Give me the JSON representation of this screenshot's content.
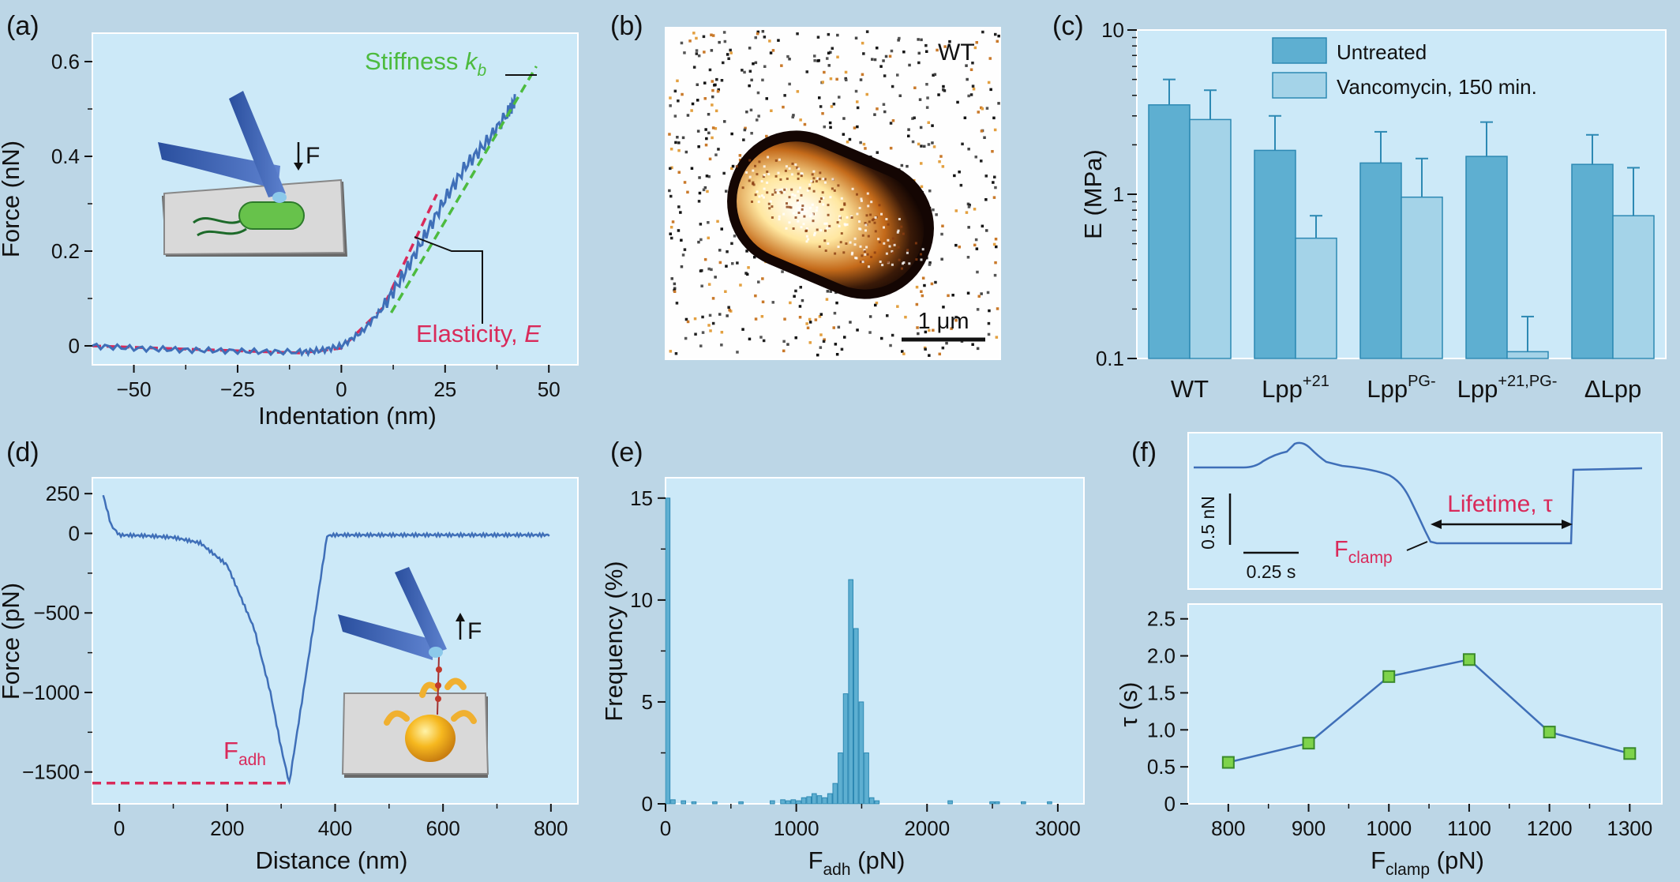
{
  "panels": {
    "a": {
      "label": "(a)"
    },
    "b": {
      "label": "(b)"
    },
    "c": {
      "label": "(c)"
    },
    "d": {
      "label": "(d)"
    },
    "e": {
      "label": "(e)"
    },
    "f": {
      "label": "(f)"
    }
  },
  "colors": {
    "figure_bg": "#bcd6e6",
    "panel_bg": "#cce9f8",
    "trace": "#3f6fb8",
    "accent_red": "#d92a5a",
    "accent_green": "#4dbb3f",
    "bar_dark": "#5eafd1",
    "bar_light": "#a4d3e8",
    "marker": "#7ed34b"
  },
  "chart_data": [
    {
      "id": "a",
      "type": "line",
      "xlabel": "Indentation (nm)",
      "ylabel": "Force (nN)",
      "xlim": [
        -60,
        57
      ],
      "ylim": [
        -0.04,
        0.66
      ],
      "xticks": [
        -50,
        -25,
        0,
        25,
        50
      ],
      "xtick_labels": [
        "−50",
        "−25",
        "0",
        "25",
        "50"
      ],
      "yticks": [
        0,
        0.2,
        0.4,
        0.6
      ],
      "ytick_labels": [
        "0",
        "0.2",
        "0.4",
        "0.6"
      ],
      "grid": false,
      "series": [
        {
          "x": [
            -60,
            -50,
            -40,
            -30,
            -20,
            -10,
            -5,
            0,
            5,
            10,
            15,
            20,
            25,
            30,
            35,
            40,
            42
          ],
          "y": [
            0,
            -0.005,
            -0.008,
            -0.01,
            -0.012,
            -0.013,
            -0.01,
            0,
            0.03,
            0.08,
            0.15,
            0.23,
            0.31,
            0.38,
            0.43,
            0.49,
            0.52
          ]
        }
      ],
      "fits": [
        {
          "x": [
            -60,
            -10,
            0,
            10,
            23
          ],
          "y": [
            0,
            -0.015,
            -0.005,
            0.08,
            0.32
          ]
        },
        {
          "x": [
            12,
            47
          ],
          "y": [
            0.07,
            0.59
          ]
        }
      ],
      "annotations": {
        "stiffness_text": "Stiffness ",
        "stiffness_symbol": "k",
        "stiffness_sub": "b",
        "elasticity_text": "Elasticity, ",
        "elasticity_symbol": "E",
        "force_arrow_label": "F"
      }
    },
    {
      "id": "b",
      "type": "image",
      "corner_label": "WT",
      "scalebar_label": "1 μm"
    },
    {
      "id": "c",
      "type": "bar",
      "ylabel": "E (MPa)",
      "yscale": "log",
      "ylim": [
        0.1,
        10
      ],
      "yticks": [
        0.1,
        1,
        10
      ],
      "ytick_labels": [
        "0.1",
        "1",
        "10"
      ],
      "categories": [
        {
          "base": "WT",
          "sup": ""
        },
        {
          "base": "Lpp",
          "sup": "+21"
        },
        {
          "base": "Lpp",
          "sup": "PG-"
        },
        {
          "base": "Lpp",
          "sup": "+21,PG-"
        },
        {
          "base": "ΔLpp",
          "sup": ""
        }
      ],
      "series": [
        {
          "name": "Untreated",
          "values": [
            3.5,
            1.85,
            1.55,
            1.7,
            1.52
          ],
          "errors": [
            5.0,
            3.0,
            2.4,
            2.75,
            2.3
          ]
        },
        {
          "name": "Vancomycin, 150 min.",
          "values": [
            2.85,
            0.54,
            0.96,
            0.11,
            0.74
          ],
          "errors": [
            4.3,
            0.74,
            1.65,
            0.18,
            1.45
          ]
        }
      ],
      "legend": "top-right"
    },
    {
      "id": "d",
      "type": "line",
      "xlabel": "Distance (nm)",
      "ylabel": "Force (pN)",
      "xlim": [
        -50,
        850
      ],
      "ylim": [
        -1700,
        350
      ],
      "xticks": [
        0,
        200,
        400,
        600,
        800
      ],
      "xtick_labels": [
        "0",
        "200",
        "400",
        "600",
        "800"
      ],
      "yticks": [
        250,
        0,
        -500,
        -1000,
        -1500
      ],
      "ytick_labels": [
        "250",
        "0",
        "−500",
        "−1000",
        "−1500"
      ],
      "grid": false,
      "series": [
        {
          "x": [
            -30,
            -15,
            0,
            50,
            100,
            150,
            200,
            250,
            280,
            300,
            315,
            350,
            385,
            400,
            600,
            800
          ],
          "y": [
            240,
            50,
            -10,
            -15,
            -25,
            -60,
            -200,
            -600,
            -1000,
            -1350,
            -1570,
            -800,
            -15,
            -10,
            -10,
            -10
          ]
        }
      ],
      "threshold": {
        "y": -1570,
        "x0": -50,
        "x1": 315
      },
      "annotations": {
        "fadh_main": "F",
        "fadh_sub": "adh",
        "force_arrow_label": "F"
      }
    },
    {
      "id": "e",
      "type": "bar",
      "xlabel_main": "F",
      "xlabel_sub": "adh",
      "xlabel_unit": " (pN)",
      "ylabel": "Frequency (%)",
      "xlim": [
        0,
        3200
      ],
      "ylim": [
        0,
        16
      ],
      "xticks": [
        0,
        1000,
        2000,
        3000
      ],
      "xtick_labels": [
        "0",
        "1000",
        "2000",
        "3000"
      ],
      "yticks": [
        0,
        5,
        10,
        15
      ],
      "ytick_labels": [
        "0",
        "5",
        "10",
        "15"
      ],
      "bin_width": 40,
      "x": [
        0,
        40,
        120,
        200,
        360,
        560,
        800,
        880,
        920,
        960,
        1000,
        1040,
        1080,
        1120,
        1160,
        1200,
        1240,
        1280,
        1320,
        1360,
        1400,
        1440,
        1480,
        1520,
        1560,
        1600,
        2160,
        2480,
        2520,
        2720,
        2920
      ],
      "values": [
        15,
        0.2,
        0.15,
        0.1,
        0.1,
        0.1,
        0.15,
        0.2,
        0.15,
        0.2,
        0.15,
        0.3,
        0.35,
        0.5,
        0.4,
        0.3,
        0.5,
        1.0,
        2.5,
        5.4,
        11.0,
        8.6,
        5.0,
        2.5,
        0.3,
        0.15,
        0.15,
        0.1,
        0.1,
        0.1,
        0.1
      ]
    },
    {
      "id": "f_trace",
      "type": "line",
      "annotations": {
        "scale_force": "0.5 nN",
        "scale_time": "0.25 s",
        "lifetime_label": "Lifetime, τ",
        "fclamp_main": "F",
        "fclamp_sub": "clamp"
      }
    },
    {
      "id": "f",
      "type": "scatter",
      "xlabel_main": "F",
      "xlabel_sub": "clamp",
      "xlabel_unit": " (pN)",
      "ylabel": "τ (s)",
      "xlim": [
        750,
        1340
      ],
      "ylim": [
        0,
        2.7
      ],
      "xticks": [
        800,
        900,
        1000,
        1100,
        1200,
        1300
      ],
      "xtick_labels": [
        "800",
        "900",
        "1000",
        "1100",
        "1200",
        "1300"
      ],
      "yticks": [
        0,
        0.5,
        1.0,
        1.5,
        2.0,
        2.5
      ],
      "ytick_labels": [
        "0",
        "0.5",
        "1.0",
        "1.5",
        "2.0",
        "2.5"
      ],
      "x": [
        800,
        900,
        1000,
        1100,
        1200,
        1300
      ],
      "y": [
        0.56,
        0.82,
        1.72,
        1.95,
        0.97,
        0.68
      ]
    }
  ]
}
